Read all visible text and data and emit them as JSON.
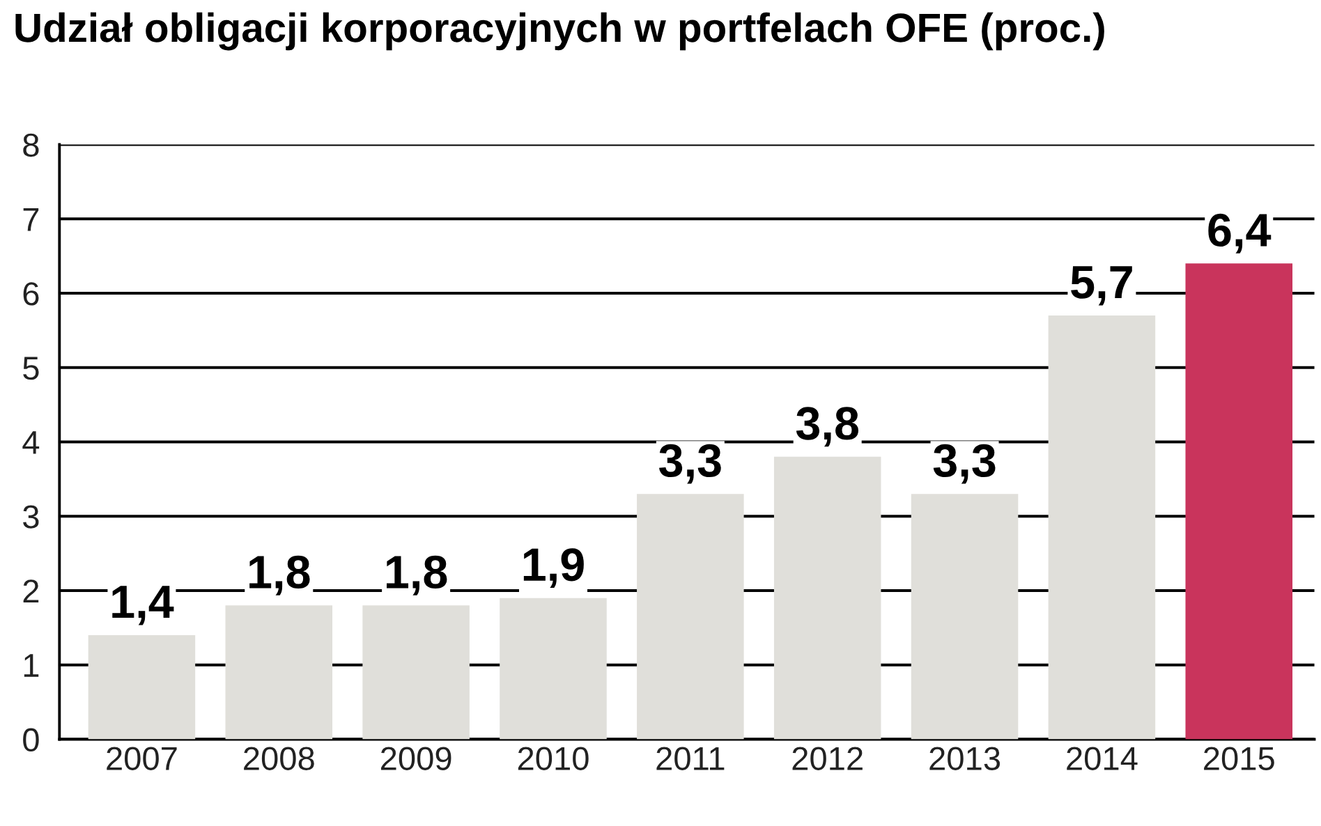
{
  "chart_data": {
    "type": "bar",
    "title": "Udział obligacji korporacyjnych w portfelach OFE (proc.)",
    "categories": [
      "2007",
      "2008",
      "2009",
      "2010",
      "2011",
      "2012",
      "2013",
      "2014",
      "2015"
    ],
    "values": [
      1.4,
      1.8,
      1.8,
      1.9,
      3.3,
      3.8,
      3.3,
      5.7,
      6.4
    ],
    "colors": [
      "#e0dfda",
      "#e0dfda",
      "#e0dfda",
      "#e0dfda",
      "#e0dfda",
      "#e0dfda",
      "#e0dfda",
      "#e0dfda",
      "#c9345c"
    ],
    "value_labels": [
      "1,4",
      "1,8",
      "1,8",
      "1,9",
      "3,3",
      "3,8",
      "3,3",
      "5,7",
      "6,4"
    ],
    "ylim": [
      0,
      8
    ],
    "yticks": [
      0,
      1,
      2,
      3,
      4,
      5,
      6,
      7,
      8
    ],
    "grid": "y",
    "legend": false
  }
}
